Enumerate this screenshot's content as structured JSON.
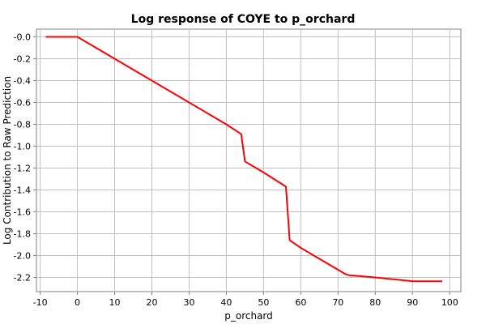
{
  "chart_data": {
    "type": "line",
    "title": "Log response of COYE to p_orchard",
    "xlabel": "p_orchard",
    "ylabel": "Log Contribution to Raw Prediction",
    "xlim": [
      -11,
      103
    ],
    "ylim": [
      -2.33,
      0.07
    ],
    "xticks": [
      -10,
      0,
      10,
      20,
      30,
      40,
      50,
      60,
      70,
      80,
      90,
      100
    ],
    "xtick_labels": [
      "-10",
      "0",
      "10",
      "20",
      "30",
      "40",
      "50",
      "60",
      "70",
      "80",
      "90",
      "100"
    ],
    "yticks": [
      0.0,
      -0.2,
      -0.4,
      -0.6,
      -0.8,
      -1.0,
      -1.2,
      -1.4,
      -1.6,
      -1.8,
      -2.0,
      -2.2
    ],
    "ytick_labels": [
      "-0.0",
      "-0.2",
      "-0.4",
      "-0.6",
      "-0.8",
      "-1.0",
      "-1.2",
      "-1.4",
      "-1.6",
      "-1.8",
      "-2.0",
      "-2.2"
    ],
    "grid": true,
    "series": [
      {
        "color": "#ff0000",
        "x": [
          -8.5,
          0,
          10,
          20,
          30,
          40,
          44,
          45,
          50,
          56,
          57,
          60,
          65,
          72,
          73,
          80,
          90,
          98
        ],
        "y": [
          0.0,
          0.0,
          -0.2,
          -0.4,
          -0.6,
          -0.8,
          -0.89,
          -1.14,
          -1.24,
          -1.37,
          -1.86,
          -1.93,
          -2.03,
          -2.17,
          -2.18,
          -2.2,
          -2.235,
          -2.235
        ]
      }
    ]
  }
}
